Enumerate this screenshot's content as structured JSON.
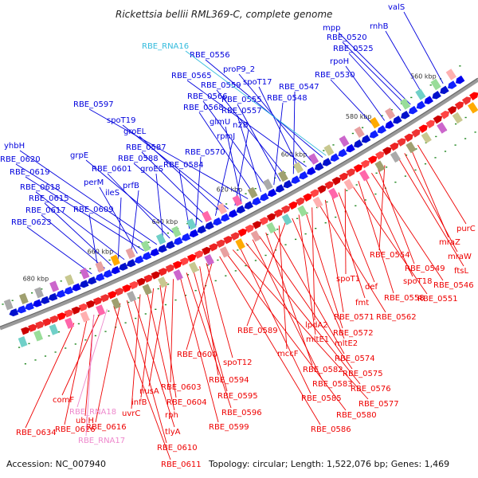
{
  "title": "Rickettsia bellii RML369-C, complete genome",
  "footer": {
    "accession": "Accession: NC_007940",
    "summary": "Topology: circular; Length: 1,522,076 bp; Genes: 1,469"
  },
  "colors": {
    "forward": "#0000dd",
    "reverse": "#ee0000",
    "rna": "#33bbdd",
    "rna_alt": "#ee88cc",
    "backbone": "#888888"
  },
  "kbp_marks": [
    {
      "label": "560 kbp",
      "value": 560
    },
    {
      "label": "580 kbp",
      "value": 580
    },
    {
      "label": "600 kbp",
      "value": 600
    },
    {
      "label": "620 kbp",
      "value": 620
    },
    {
      "label": "640 kbp",
      "value": 640
    },
    {
      "label": "660 kbp",
      "value": 660
    },
    {
      "label": "680 kbp",
      "value": 680
    }
  ],
  "forward_genes": [
    {
      "label": "valS",
      "pos": 556
    },
    {
      "label": "rnhB",
      "pos": 562
    },
    {
      "label": "mpp",
      "pos": 566
    },
    {
      "label": "RBE_0520",
      "pos": 567
    },
    {
      "label": "RBE_0525",
      "pos": 569
    },
    {
      "label": "rpoH",
      "pos": 574
    },
    {
      "label": "RBE_0530",
      "pos": 577
    },
    {
      "label": "RBE_0556",
      "pos": 593
    },
    {
      "label": "proP9_2",
      "pos": 596
    },
    {
      "label": "RBE_0565",
      "pos": 598
    },
    {
      "label": "spoT17",
      "pos": 600
    },
    {
      "label": "RBE_0547",
      "pos": 602
    },
    {
      "label": "RBE_0559",
      "pos": 604
    },
    {
      "label": "RBE_0555",
      "pos": 606
    },
    {
      "label": "RBE_0548",
      "pos": 608
    },
    {
      "label": "RBE_0566",
      "pos": 610
    },
    {
      "label": "RBE_0557",
      "pos": 612
    },
    {
      "label": "RBE_0568",
      "pos": 614
    },
    {
      "label": "RBE_0597",
      "pos": 616
    },
    {
      "label": "glmU",
      "pos": 618
    },
    {
      "label": "n2B",
      "pos": 620
    },
    {
      "label": "spoT19",
      "pos": 622
    },
    {
      "label": "groEL",
      "pos": 624
    },
    {
      "label": "rpmJ",
      "pos": 626
    },
    {
      "label": "RBE_0587",
      "pos": 628
    },
    {
      "label": "RBE_0588",
      "pos": 630
    },
    {
      "label": "RBE_0570",
      "pos": 632
    },
    {
      "label": "RBE_0584",
      "pos": 634
    },
    {
      "label": "grpE",
      "pos": 638
    },
    {
      "label": "RBE_0601",
      "pos": 640
    },
    {
      "label": "groES",
      "pos": 642
    },
    {
      "label": "yhbH",
      "pos": 644
    },
    {
      "label": "RBE_0620",
      "pos": 646
    },
    {
      "label": "RBE_0619",
      "pos": 648
    },
    {
      "label": "perM",
      "pos": 650
    },
    {
      "label": "prfB",
      "pos": 652
    },
    {
      "label": "RBE_0618",
      "pos": 654
    },
    {
      "label": "ileS",
      "pos": 656
    },
    {
      "label": "RBE_0615",
      "pos": 658
    },
    {
      "label": "RBE_0617",
      "pos": 660
    },
    {
      "label": "RBE_0609",
      "pos": 662
    },
    {
      "label": "RBE_0623",
      "pos": 664
    }
  ],
  "rna_genes": [
    {
      "label": "RBE_RNA16",
      "pos": 592
    }
  ],
  "reverse_genes": [
    {
      "label": "purC",
      "pos": 570
    },
    {
      "label": "mraZ",
      "pos": 572
    },
    {
      "label": "mraW",
      "pos": 574
    },
    {
      "label": "ftsL",
      "pos": 576
    },
    {
      "label": "RBE_0554",
      "pos": 580
    },
    {
      "label": "RBE_0549",
      "pos": 582
    },
    {
      "label": "RBE_0546",
      "pos": 584
    },
    {
      "label": "spoT18",
      "pos": 586
    },
    {
      "label": "RBE_0558",
      "pos": 588
    },
    {
      "label": "RBE_0551",
      "pos": 590
    },
    {
      "label": "spoT1",
      "pos": 592
    },
    {
      "label": "def",
      "pos": 594
    },
    {
      "label": "fmt",
      "pos": 596
    },
    {
      "label": "RBE_0571",
      "pos": 598
    },
    {
      "label": "RBE_0562",
      "pos": 600
    },
    {
      "label": "lpdA2",
      "pos": 602
    },
    {
      "label": "RBE_0572",
      "pos": 604
    },
    {
      "label": "mltE1",
      "pos": 606
    },
    {
      "label": "mltE2",
      "pos": 608
    },
    {
      "label": "RBE_0589",
      "pos": 610
    },
    {
      "label": "mccF",
      "pos": 612
    },
    {
      "label": "RBE_0574",
      "pos": 614
    },
    {
      "label": "RBE_0582",
      "pos": 616
    },
    {
      "label": "RBE_0575",
      "pos": 618
    },
    {
      "label": "RBE_0583",
      "pos": 620
    },
    {
      "label": "RBE_0576",
      "pos": 622
    },
    {
      "label": "RBE_0585",
      "pos": 624
    },
    {
      "label": "RBE_0577",
      "pos": 626
    },
    {
      "label": "RBE_0580",
      "pos": 628
    },
    {
      "label": "RBE_0586",
      "pos": 630
    },
    {
      "label": "RBE_0600",
      "pos": 632
    },
    {
      "label": "spoT12",
      "pos": 634
    },
    {
      "label": "RBE_0594",
      "pos": 636
    },
    {
      "label": "RBE_0595",
      "pos": 638
    },
    {
      "label": "RBE_0596",
      "pos": 640
    },
    {
      "label": "RBE_0599",
      "pos": 642
    },
    {
      "label": "RBE_0603",
      "pos": 644
    },
    {
      "label": "nusA",
      "pos": 646
    },
    {
      "label": "RBE_0604",
      "pos": 648
    },
    {
      "label": "infB",
      "pos": 650
    },
    {
      "label": "rph",
      "pos": 652
    },
    {
      "label": "uvrC",
      "pos": 654
    },
    {
      "label": "tlyA",
      "pos": 656
    },
    {
      "label": "RBE_0610",
      "pos": 658
    },
    {
      "label": "RBE_0616",
      "pos": 660
    },
    {
      "label": "RBE_0611",
      "pos": 662
    },
    {
      "label": "comF",
      "pos": 666
    },
    {
      "label": "ubiH",
      "pos": 668
    },
    {
      "label": "RBE_0626",
      "pos": 670
    },
    {
      "label": "RBE_0634",
      "pos": 674
    }
  ],
  "rna_genes_reverse": [
    {
      "label": "RBE_RNA18",
      "pos": 664
    },
    {
      "label": "RBE_RNA17",
      "pos": 668
    }
  ]
}
